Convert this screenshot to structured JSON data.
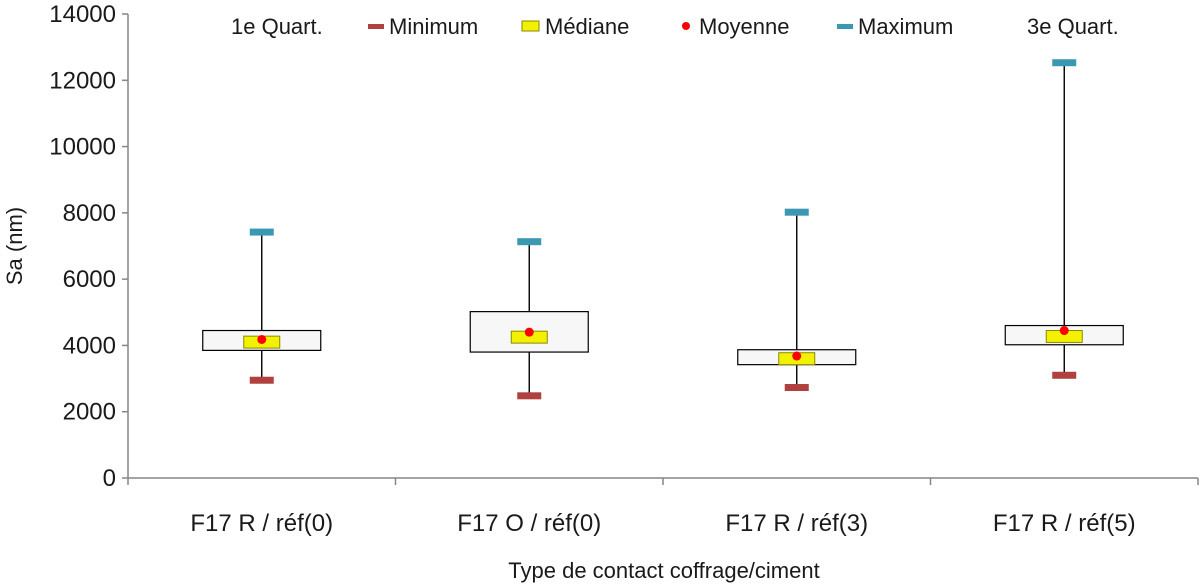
{
  "chart_data": {
    "type": "boxplot",
    "title": "",
    "xlabel": "Type de contact coffrage/ciment",
    "ylabel": "Sa (nm)",
    "ylim": [
      0,
      14000
    ],
    "yticks": [
      0,
      2000,
      4000,
      6000,
      8000,
      10000,
      12000,
      14000
    ],
    "categories": [
      "F17 R / réf(0)",
      "F17 O / réf(0)",
      "F17 R / réf(3)",
      "F17 R / réf(5)"
    ],
    "legend": {
      "q1": "1e Quart.",
      "min": "Minimum",
      "median": "Médiane",
      "mean": "Moyenne",
      "max": "Maximum",
      "q3": "3e Quart.",
      "placement": "top"
    },
    "series": [
      {
        "category": "F17 R / réf(0)",
        "min": 2950,
        "q1": 3850,
        "median": 4100,
        "mean": 4180,
        "q3": 4450,
        "max": 7420
      },
      {
        "category": "F17 O / réf(0)",
        "min": 2480,
        "q1": 3800,
        "median": 4250,
        "mean": 4400,
        "q3": 5020,
        "max": 7130
      },
      {
        "category": "F17 R / réf(3)",
        "min": 2730,
        "q1": 3420,
        "median": 3600,
        "mean": 3680,
        "q3": 3870,
        "max": 8020
      },
      {
        "category": "F17 R / réf(5)",
        "min": 3100,
        "q1": 4020,
        "median": 4270,
        "mean": 4450,
        "q3": 4600,
        "max": 12530
      }
    ],
    "colors": {
      "min": "#b0413e",
      "max": "#3b98b3",
      "median_fill": "#f2f200",
      "median_stroke": "#8a8a00",
      "mean": "#ff0000",
      "box_fill": "#f7f7f7",
      "box_stroke": "#000000",
      "axis": "#868686"
    }
  }
}
